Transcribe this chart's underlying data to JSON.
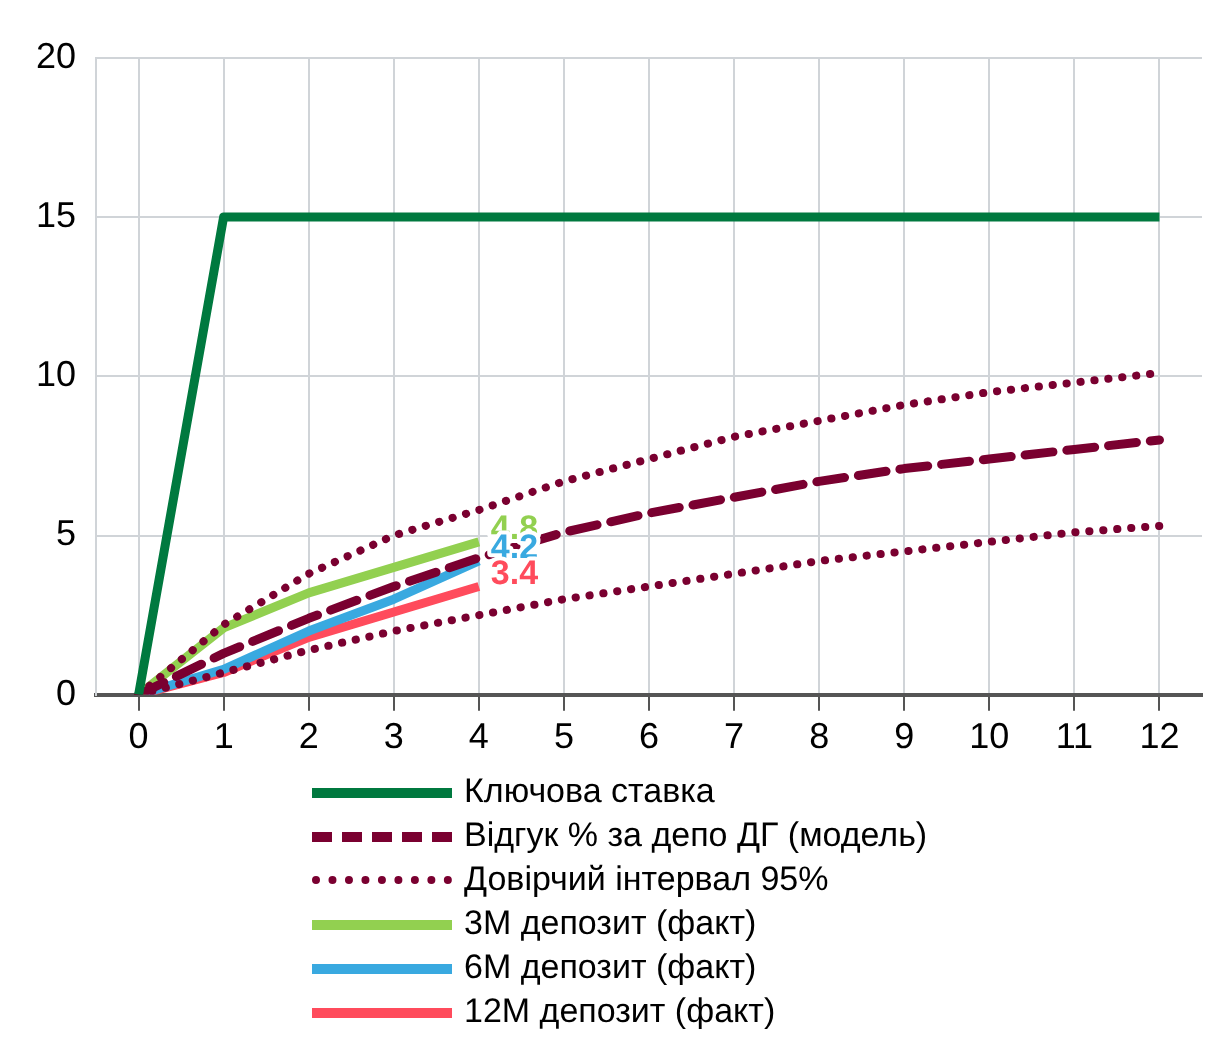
{
  "chart_data": {
    "type": "line",
    "x": [
      0,
      1,
      2,
      3,
      4,
      5,
      6,
      7,
      8,
      9,
      10,
      11,
      12
    ],
    "xlim": [
      -0.5,
      12.5
    ],
    "xticks": [
      0,
      1,
      2,
      3,
      4,
      5,
      6,
      7,
      8,
      9,
      10,
      11,
      12
    ],
    "ylim": [
      0,
      20
    ],
    "yticks": [
      0,
      5,
      10,
      15,
      20
    ],
    "grid": true,
    "legend": "bottom",
    "series": [
      {
        "name": "Ключова ставка",
        "color": "#00793f",
        "x": [
          0,
          1,
          12
        ],
        "values": [
          0,
          15,
          15
        ],
        "line_style": "solid"
      },
      {
        "name": "Відгук % за депо ДГ (модель)",
        "color": "#7a0030",
        "values": [
          0,
          1.3,
          2.4,
          3.4,
          4.3,
          5.1,
          5.7,
          6.2,
          6.7,
          7.1,
          7.4,
          7.7,
          8.0
        ],
        "line_style": "dashed"
      },
      {
        "name": "Довірчий інтервал 95%",
        "color": "#7a0030",
        "values": [
          0,
          2.2,
          3.8,
          5.0,
          5.8,
          6.7,
          7.4,
          8.1,
          8.6,
          9.1,
          9.5,
          9.8,
          10.1
        ],
        "line_style": "dotted"
      },
      {
        "color": "#7a0030",
        "values": [
          0,
          0.7,
          1.4,
          2.0,
          2.5,
          3.0,
          3.4,
          3.8,
          4.2,
          4.5,
          4.8,
          5.1,
          5.3
        ],
        "line_style": "dotted"
      },
      {
        "name": "3M депозит (факт)",
        "color": "#92d050",
        "x": [
          0,
          1,
          2,
          3,
          4
        ],
        "values": [
          0,
          2.1,
          3.2,
          4.0,
          4.8
        ],
        "value_labels": [
          null,
          null,
          null,
          null,
          "4.8"
        ],
        "line_style": "solid"
      },
      {
        "name": "6M депозит (факт)",
        "color": "#39a9e0",
        "x": [
          0,
          1,
          2,
          3,
          4
        ],
        "values": [
          0,
          0.8,
          2.0,
          3.0,
          4.2
        ],
        "value_labels": [
          null,
          null,
          null,
          null,
          "4.2"
        ],
        "line_style": "solid"
      },
      {
        "name": "12M депозит (факт)",
        "color": "#ff4b5c",
        "x": [
          0,
          1,
          2,
          3,
          4
        ],
        "values": [
          0,
          0.7,
          1.8,
          2.6,
          3.4
        ],
        "value_labels": [
          null,
          null,
          null,
          null,
          "3.4"
        ],
        "line_style": "solid"
      }
    ]
  }
}
